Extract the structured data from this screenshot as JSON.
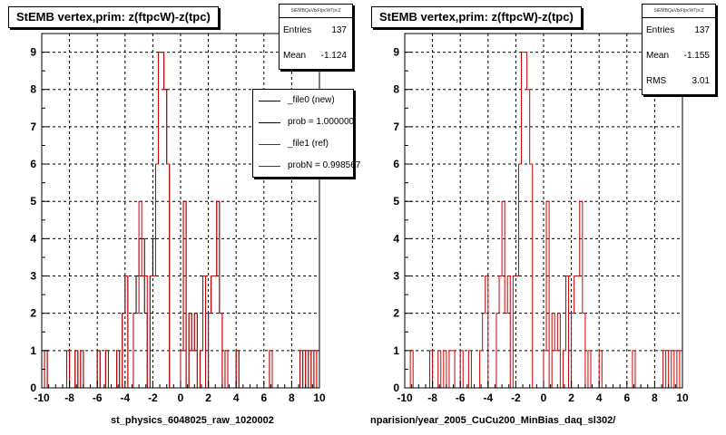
{
  "colors": {
    "new": "#000000",
    "ref": "#cc0000"
  },
  "chart_data": [
    {
      "type": "histogram",
      "title": "StEMB  vertex,prim: z(ftpcW)-z(tpc)",
      "xlabel": "st_physics_6048025_raw_1020002",
      "xlim": [
        -10,
        10
      ],
      "ylim": [
        0,
        9.5
      ],
      "xticks": [
        -10,
        -8,
        -6,
        -4,
        -2,
        0,
        2,
        4,
        6,
        8,
        10
      ],
      "yticks": [
        0,
        1,
        2,
        3,
        4,
        5,
        6,
        7,
        8,
        9
      ],
      "grid": true,
      "stats": {
        "header": "StEMBQaVtxFtpcWTpcZ",
        "rows": [
          {
            "label": "Entries",
            "value": "137"
          },
          {
            "label": "Mean",
            "value": "-1.124"
          }
        ]
      },
      "legend": {
        "placement": "top-right",
        "entries": [
          {
            "label": "_file0 (new)",
            "color": "#000000"
          },
          {
            "label": "prob = 1.000000",
            "color": "#000000"
          },
          {
            "label": "_file1 (ref)",
            "color": "#cc0000"
          },
          {
            "label": "probN = 0.998567",
            "color": "#cc0000"
          }
        ]
      },
      "series": [
        {
          "name": "_file0 (new)",
          "color": "#000000",
          "bins": [
            [
              -9.8,
              1
            ],
            [
              -8.2,
              1
            ],
            [
              -7.6,
              1
            ],
            [
              -7.2,
              1
            ],
            [
              -6.7,
              1
            ],
            [
              -6.5,
              1
            ],
            [
              -6.0,
              1
            ],
            [
              -5.4,
              1
            ],
            [
              -4.6,
              1
            ],
            [
              -4.2,
              2
            ],
            [
              -4.0,
              3
            ],
            [
              -3.4,
              2
            ],
            [
              -3.2,
              3
            ],
            [
              -3.0,
              4
            ],
            [
              -2.8,
              4
            ],
            [
              -2.6,
              2
            ],
            [
              -2.2,
              3
            ],
            [
              -2.0,
              4
            ],
            [
              -1.8,
              6
            ],
            [
              -1.6,
              9
            ],
            [
              -1.4,
              9
            ],
            [
              -1.2,
              8
            ],
            [
              -1.0,
              6
            ],
            [
              0.0,
              1
            ],
            [
              0.2,
              5
            ],
            [
              0.6,
              2
            ],
            [
              0.8,
              1
            ],
            [
              1.0,
              2
            ],
            [
              1.4,
              1
            ],
            [
              1.6,
              3
            ],
            [
              2.0,
              2
            ],
            [
              2.2,
              3
            ],
            [
              2.4,
              3
            ],
            [
              2.6,
              5
            ],
            [
              2.8,
              2
            ],
            [
              3.2,
              1
            ],
            [
              4.0,
              1
            ],
            [
              6.4,
              1
            ],
            [
              8.6,
              1
            ],
            [
              9.0,
              1
            ],
            [
              9.4,
              1
            ],
            [
              9.8,
              1
            ]
          ]
        },
        {
          "name": "_file1 (ref)",
          "color": "#cc0000",
          "bins": [
            [
              -9.8,
              1
            ],
            [
              -8.2,
              1
            ],
            [
              -7.6,
              1
            ],
            [
              -7.2,
              1
            ],
            [
              -6.7,
              1
            ],
            [
              -6.5,
              1
            ],
            [
              -6.0,
              1
            ],
            [
              -5.4,
              1
            ],
            [
              -4.6,
              1
            ],
            [
              -4.2,
              2
            ],
            [
              -4.0,
              3
            ],
            [
              -3.4,
              2
            ],
            [
              -3.2,
              2
            ],
            [
              -3.0,
              5
            ],
            [
              -2.8,
              3
            ],
            [
              -2.6,
              3
            ],
            [
              -2.2,
              3
            ],
            [
              -2.0,
              3
            ],
            [
              -1.8,
              6
            ],
            [
              -1.6,
              9
            ],
            [
              -1.4,
              9
            ],
            [
              -1.2,
              8
            ],
            [
              -1.0,
              6
            ],
            [
              0.0,
              1
            ],
            [
              0.2,
              5
            ],
            [
              0.6,
              2
            ],
            [
              0.8,
              1
            ],
            [
              1.0,
              2
            ],
            [
              1.4,
              1
            ],
            [
              1.6,
              3
            ],
            [
              2.0,
              2
            ],
            [
              2.2,
              3
            ],
            [
              2.4,
              3
            ],
            [
              2.6,
              5
            ],
            [
              2.8,
              2
            ],
            [
              3.2,
              1
            ],
            [
              4.0,
              1
            ],
            [
              6.4,
              1
            ],
            [
              8.6,
              1
            ],
            [
              9.0,
              1
            ],
            [
              9.4,
              1
            ],
            [
              9.8,
              1
            ]
          ]
        }
      ]
    },
    {
      "type": "histogram",
      "title": "StEMB  vertex,prim: z(ftpcW)-z(tpc)",
      "xlabel": "nparision/year_2005_CuCu200_MinBias_daq_sl302/",
      "xlim": [
        -10,
        10
      ],
      "ylim": [
        0,
        9.5
      ],
      "xticks": [
        -10,
        -8,
        -6,
        -4,
        -2,
        0,
        2,
        4,
        6,
        8,
        10
      ],
      "yticks": [
        0,
        1,
        2,
        3,
        4,
        5,
        6,
        7,
        8,
        9
      ],
      "grid": true,
      "stats": {
        "header": "StEMBQaVtxFtpcWTpcZ",
        "rows": [
          {
            "label": "Entries",
            "value": "137"
          },
          {
            "label": "Mean",
            "value": "-1.155"
          },
          {
            "label": "RMS",
            "value": "3.01"
          }
        ]
      },
      "series": [
        {
          "name": "",
          "color": "#cc0000",
          "bins": [
            [
              -9.6,
              1
            ],
            [
              -8.2,
              1
            ],
            [
              -7.6,
              1
            ],
            [
              -7.2,
              1
            ],
            [
              -6.8,
              1
            ],
            [
              -6.6,
              1
            ],
            [
              -6.0,
              1
            ],
            [
              -5.4,
              1
            ],
            [
              -4.6,
              1
            ],
            [
              -4.4,
              2
            ],
            [
              -4.2,
              3
            ],
            [
              -3.4,
              2
            ],
            [
              -3.2,
              3
            ],
            [
              -3.0,
              5
            ],
            [
              -2.8,
              2
            ],
            [
              -2.6,
              3
            ],
            [
              -2.2,
              3
            ],
            [
              -2.0,
              3
            ],
            [
              -1.8,
              6
            ],
            [
              -1.6,
              9
            ],
            [
              -1.4,
              9
            ],
            [
              -1.2,
              8
            ],
            [
              -1.0,
              6
            ],
            [
              0.0,
              1
            ],
            [
              0.2,
              5
            ],
            [
              0.6,
              2
            ],
            [
              0.8,
              1
            ],
            [
              1.0,
              2
            ],
            [
              1.4,
              1
            ],
            [
              1.6,
              3
            ],
            [
              2.0,
              2
            ],
            [
              2.2,
              3
            ],
            [
              2.4,
              3
            ],
            [
              2.6,
              5
            ],
            [
              2.8,
              2
            ],
            [
              3.2,
              1
            ],
            [
              4.0,
              1
            ],
            [
              6.4,
              1
            ],
            [
              8.6,
              1
            ],
            [
              9.0,
              1
            ],
            [
              9.4,
              1
            ],
            [
              9.8,
              1
            ]
          ]
        }
      ]
    }
  ]
}
